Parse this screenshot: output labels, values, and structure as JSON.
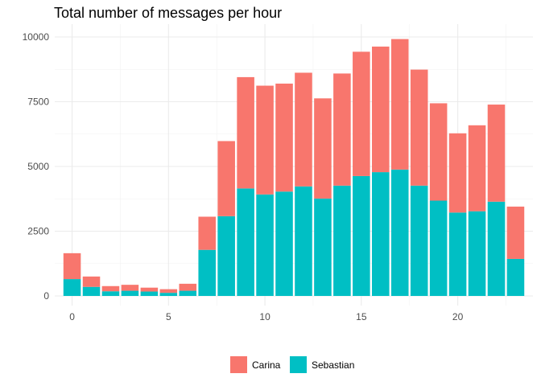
{
  "chart_data": {
    "type": "bar",
    "stacked": true,
    "title": "Total number of messages per hour",
    "xlabel": "",
    "ylabel": "",
    "x": [
      0,
      1,
      2,
      3,
      4,
      5,
      6,
      7,
      8,
      9,
      10,
      11,
      12,
      13,
      14,
      15,
      16,
      17,
      18,
      19,
      20,
      21,
      22,
      23
    ],
    "x_ticks": [
      0,
      5,
      10,
      15,
      20
    ],
    "y_ticks": [
      0,
      2500,
      5000,
      7500,
      10000
    ],
    "x_tick_labels": [
      "0",
      "5",
      "10",
      "15",
      "20"
    ],
    "y_tick_labels": [
      "0",
      "2500",
      "5000",
      "7500",
      "10000"
    ],
    "ylim": [
      0,
      10000
    ],
    "series": [
      {
        "name": "Sebastian",
        "color": "#00BFC4",
        "values": [
          650,
          350,
          180,
          200,
          170,
          120,
          200,
          1780,
          3080,
          4150,
          3920,
          4030,
          4230,
          3760,
          4260,
          4630,
          4780,
          4880,
          4260,
          3680,
          3220,
          3270,
          3640,
          1430
        ]
      },
      {
        "name": "Carina",
        "color": "#F8766D",
        "values": [
          1000,
          400,
          200,
          230,
          150,
          140,
          270,
          1280,
          2900,
          4300,
          4200,
          4170,
          4390,
          3870,
          4330,
          4800,
          4850,
          5040,
          4480,
          3760,
          3060,
          3320,
          3750,
          2020
        ]
      }
    ],
    "legend": {
      "position": "bottom",
      "entries": [
        "Carina",
        "Sebastian"
      ]
    },
    "grid": true
  }
}
